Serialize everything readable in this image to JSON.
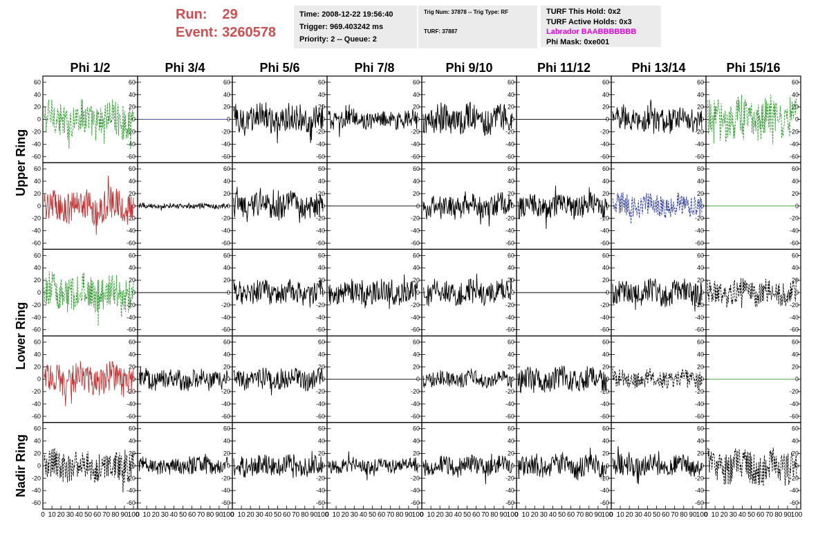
{
  "header": {
    "run_label": "Run:",
    "run_value": "29",
    "event_label": "Event:",
    "event_value": "3260578"
  },
  "info1": {
    "time": "Time: 2008-12-22 19:56:40",
    "trigger": "Trigger: 969.403242 ms",
    "priority": "Priority: 2 -- Queue: 2"
  },
  "info2": {
    "trig": "Trig Num: 37878 -- Trig Type: RF",
    "turf": "TURF: 37887"
  },
  "info3": {
    "this_hold": "TURF This Hold: 0x2",
    "active_holds": "TURF Active Holds: 0x3",
    "labrador": "Labrador BAABBBBBBB",
    "phi_mask": "Phi Mask: 0xe001"
  },
  "chart_data": {
    "type": "line",
    "columns": [
      "Phi 1/2",
      "Phi 3/4",
      "Phi 5/6",
      "Phi 7/8",
      "Phi 9/10",
      "Phi 11/12",
      "Phi 13/14",
      "Phi 15/16"
    ],
    "rows": [
      "Upper Ring",
      "Lower Ring",
      "Nadir Ring"
    ],
    "ylim": [
      -70,
      70
    ],
    "yticks": [
      60,
      40,
      20,
      0,
      -20,
      -40,
      -60
    ],
    "ytick_labels": [
      "60",
      "40",
      "20",
      "0",
      "-20",
      "-40",
      "-60"
    ],
    "xlim": [
      0,
      100
    ],
    "xtick_labels": [
      "0",
      "10",
      "20",
      "30",
      "40",
      "50",
      "60",
      "70",
      "80",
      "90",
      "100"
    ],
    "colors": {
      "green": "#2e9a2e",
      "red": "#c03030",
      "blue": "#2a3aa0",
      "black": "#000000"
    },
    "panels": [
      [
        {
          "color": "green",
          "dashed": true,
          "amp": 28
        },
        {
          "color": "blue",
          "dashed": false,
          "amp": 0
        },
        {
          "color": "black",
          "dashed": false,
          "amp": 22
        },
        {
          "color": "black",
          "dashed": false,
          "amp": 14
        },
        {
          "color": "black",
          "dashed": false,
          "amp": 22
        },
        {
          "color": "black",
          "dashed": false,
          "amp": 0
        },
        {
          "color": "black",
          "dashed": false,
          "amp": 20
        },
        {
          "color": "green",
          "dashed": true,
          "amp": 32
        }
      ],
      [
        {
          "color": "red",
          "dashed": false,
          "amp": 26
        },
        {
          "color": "black",
          "dashed": false,
          "amp": 4
        },
        {
          "color": "black",
          "dashed": false,
          "amp": 20
        },
        {
          "color": "black",
          "dashed": false,
          "amp": 0
        },
        {
          "color": "black",
          "dashed": false,
          "amp": 18
        },
        {
          "color": "black",
          "dashed": false,
          "amp": 18
        },
        {
          "color": "blue",
          "dashed": true,
          "amp": 18
        },
        {
          "color": "green",
          "dashed": false,
          "amp": 0
        }
      ],
      [
        {
          "color": "green",
          "dashed": true,
          "amp": 28
        },
        {
          "color": "black",
          "dashed": false,
          "amp": 0
        },
        {
          "color": "black",
          "dashed": false,
          "amp": 18
        },
        {
          "color": "black",
          "dashed": false,
          "amp": 18
        },
        {
          "color": "black",
          "dashed": false,
          "amp": 18
        },
        {
          "color": "black",
          "dashed": false,
          "amp": 0
        },
        {
          "color": "black",
          "dashed": false,
          "amp": 20
        },
        {
          "color": "black",
          "dashed": true,
          "amp": 20
        }
      ],
      [
        {
          "color": "red",
          "dashed": false,
          "amp": 24
        },
        {
          "color": "black",
          "dashed": false,
          "amp": 16
        },
        {
          "color": "black",
          "dashed": false,
          "amp": 16
        },
        {
          "color": "black",
          "dashed": false,
          "amp": 0
        },
        {
          "color": "black",
          "dashed": false,
          "amp": 12
        },
        {
          "color": "black",
          "dashed": false,
          "amp": 18
        },
        {
          "color": "black",
          "dashed": true,
          "amp": 14
        },
        {
          "color": "green",
          "dashed": false,
          "amp": 0
        }
      ],
      [
        {
          "color": "black",
          "dashed": true,
          "amp": 24
        },
        {
          "color": "black",
          "dashed": false,
          "amp": 12
        },
        {
          "color": "black",
          "dashed": false,
          "amp": 16
        },
        {
          "color": "black",
          "dashed": false,
          "amp": 12
        },
        {
          "color": "black",
          "dashed": false,
          "amp": 14
        },
        {
          "color": "black",
          "dashed": false,
          "amp": 18
        },
        {
          "color": "black",
          "dashed": false,
          "amp": 16
        },
        {
          "color": "black",
          "dashed": true,
          "amp": 26
        }
      ]
    ]
  }
}
